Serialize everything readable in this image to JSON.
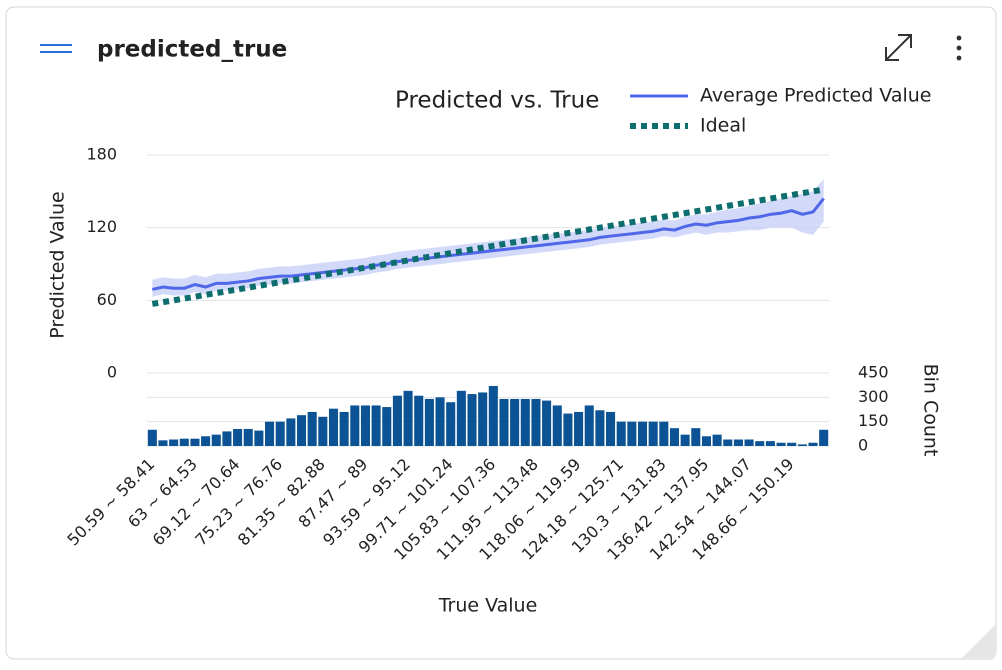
{
  "header": {
    "title": "predicted_true"
  },
  "chart_data": {
    "type": "line",
    "title": "Predicted vs. True",
    "x_label": "True Value",
    "y_label": "Predicted Value",
    "y2_label": "Bin Count",
    "categories": [
      "50.59 ~ 58.41",
      null,
      null,
      null,
      "63 ~ 64.53",
      null,
      null,
      null,
      "69.12 ~ 70.64",
      null,
      null,
      null,
      "75.23 ~ 76.76",
      null,
      null,
      null,
      "81.35 ~ 82.88",
      null,
      null,
      null,
      "87.47 ~ 89",
      null,
      null,
      null,
      "93.59 ~ 95.12",
      null,
      null,
      null,
      "99.71 ~ 101.24",
      null,
      null,
      null,
      "105.83 ~ 107.36",
      null,
      null,
      null,
      "111.95 ~ 113.48",
      null,
      null,
      null,
      "118.06 ~ 119.59",
      null,
      null,
      null,
      "124.18 ~ 125.71",
      null,
      null,
      null,
      "130.3 ~ 131.83",
      null,
      null,
      null,
      "136.42 ~ 137.95",
      null,
      null,
      null,
      "142.54 ~ 144.07",
      null,
      null,
      null,
      "148.66 ~ 150.19",
      null,
      null,
      null
    ],
    "ylim": [
      0,
      180
    ],
    "yticks": [
      0,
      60,
      120,
      180
    ],
    "y2lim": [
      0,
      450
    ],
    "y2ticks": [
      0,
      150,
      300,
      450
    ],
    "grid": true,
    "series": [
      {
        "name": "Average Predicted Value",
        "color": "#4f67e8",
        "values": [
          69,
          71,
          70,
          70,
          73,
          71,
          74,
          74,
          75,
          76,
          78,
          79,
          80,
          80,
          81,
          82,
          83,
          84,
          85,
          86,
          87,
          89,
          90,
          92,
          93,
          94,
          95,
          96,
          97,
          98,
          99,
          100,
          101,
          102,
          103,
          104,
          105,
          106,
          107,
          108,
          109,
          110,
          112,
          113,
          114,
          115,
          116,
          117,
          119,
          118,
          121,
          123,
          122,
          124,
          125,
          126,
          128,
          129,
          131,
          132,
          134,
          131,
          133,
          144
        ]
      },
      {
        "name": "Ideal",
        "color": "#0e6e6e",
        "style": "dotted",
        "values": [
          57,
          58.5,
          60,
          61.5,
          63,
          64.5,
          66,
          67.5,
          69,
          70.5,
          72,
          73.5,
          75,
          76.5,
          78,
          79.5,
          81,
          82.5,
          84,
          85.5,
          87,
          88.5,
          90,
          91.5,
          93,
          94.5,
          96,
          97.5,
          99,
          100.5,
          102,
          103.5,
          105,
          106.5,
          108,
          109.5,
          111,
          112.5,
          114,
          115.5,
          117,
          118.5,
          120,
          121.5,
          123,
          124.5,
          126,
          127.5,
          129,
          130.5,
          132,
          133.5,
          135,
          136.5,
          138,
          139.5,
          141,
          142.5,
          144,
          145.5,
          147,
          148.5,
          150,
          151.5
        ]
      },
      {
        "type": "bar",
        "axis": "y2",
        "color": "#0b5394",
        "values": [
          100,
          35,
          40,
          45,
          45,
          60,
          70,
          90,
          105,
          105,
          95,
          150,
          150,
          170,
          190,
          210,
          180,
          230,
          210,
          250,
          250,
          250,
          240,
          310,
          340,
          310,
          290,
          300,
          270,
          340,
          320,
          330,
          370,
          290,
          290,
          290,
          290,
          280,
          250,
          200,
          210,
          250,
          220,
          210,
          150,
          150,
          150,
          150,
          150,
          110,
          70,
          110,
          60,
          70,
          40,
          40,
          40,
          30,
          30,
          20,
          20,
          10,
          20,
          100
        ]
      }
    ],
    "band": {
      "color": "#c7cff7",
      "lower": [
        63,
        65,
        64,
        64,
        67,
        65,
        68,
        68,
        69,
        70,
        72,
        73,
        74,
        74,
        75,
        76,
        77,
        78,
        79,
        80,
        81,
        83,
        84,
        86,
        87,
        88,
        89,
        90,
        91,
        92,
        93,
        94,
        95,
        96,
        97,
        98,
        99,
        100,
        101,
        102,
        103,
        104,
        106,
        107,
        108,
        109,
        110,
        111,
        113,
        112,
        114,
        116,
        114,
        116,
        116,
        117,
        118,
        118,
        120,
        120,
        120,
        116,
        114,
        125
      ],
      "upper": [
        77,
        79,
        78,
        78,
        81,
        79,
        82,
        82,
        83,
        84,
        86,
        87,
        88,
        88,
        89,
        90,
        91,
        92,
        93,
        94,
        95,
        97,
        98,
        100,
        101,
        102,
        103,
        104,
        105,
        106,
        107,
        108,
        109,
        110,
        111,
        112,
        113,
        114,
        115,
        116,
        117,
        118,
        120,
        121,
        122,
        123,
        124,
        125,
        127,
        126,
        129,
        131,
        131,
        133,
        135,
        136,
        138,
        140,
        142,
        144,
        146,
        148,
        150,
        160
      ]
    }
  }
}
